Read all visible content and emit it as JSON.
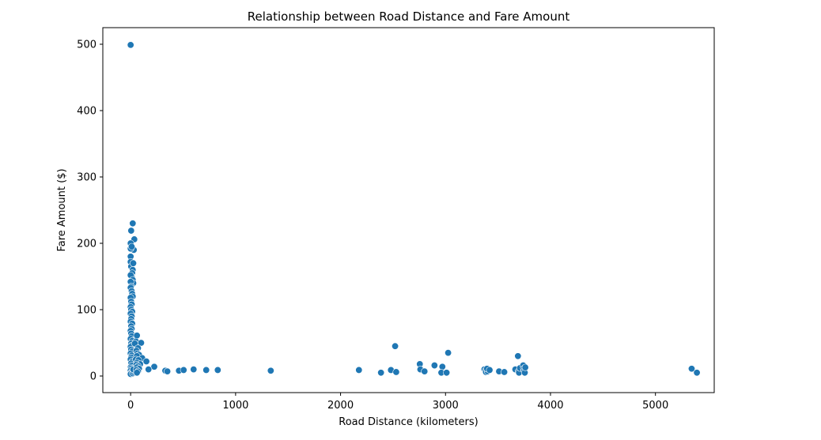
{
  "chart_data": {
    "type": "scatter",
    "title": "Relationship between Road Distance and Fare Amount",
    "xlabel": "Road Distance (kilometers)",
    "ylabel": "Fare Amount ($)",
    "xlim": [
      -265,
      5560
    ],
    "ylim": [
      -25,
      525
    ],
    "xticks": [
      0,
      1000,
      2000,
      3000,
      4000,
      5000
    ],
    "yticks": [
      0,
      100,
      200,
      300,
      400,
      500
    ],
    "grid": false,
    "marker_color": "#1f77b4",
    "marker_edge_color": "#ffffff",
    "points": [
      {
        "x": 0,
        "y": 499
      },
      {
        "x": 5,
        "y": 219
      },
      {
        "x": 20,
        "y": 230
      },
      {
        "x": 35,
        "y": 206
      },
      {
        "x": 30,
        "y": 190
      },
      {
        "x": 0,
        "y": 200
      },
      {
        "x": 0,
        "y": 192
      },
      {
        "x": 10,
        "y": 195
      },
      {
        "x": 0,
        "y": 180
      },
      {
        "x": 0,
        "y": 172
      },
      {
        "x": 5,
        "y": 165
      },
      {
        "x": 25,
        "y": 170
      },
      {
        "x": 20,
        "y": 160
      },
      {
        "x": 15,
        "y": 155
      },
      {
        "x": 10,
        "y": 150
      },
      {
        "x": 0,
        "y": 152
      },
      {
        "x": 20,
        "y": 145
      },
      {
        "x": 25,
        "y": 140
      },
      {
        "x": 0,
        "y": 142
      },
      {
        "x": 5,
        "y": 135
      },
      {
        "x": 0,
        "y": 133
      },
      {
        "x": 10,
        "y": 128
      },
      {
        "x": 15,
        "y": 124
      },
      {
        "x": 20,
        "y": 120
      },
      {
        "x": 0,
        "y": 118
      },
      {
        "x": 5,
        "y": 112
      },
      {
        "x": 10,
        "y": 108
      },
      {
        "x": 0,
        "y": 104
      },
      {
        "x": 5,
        "y": 100
      },
      {
        "x": 15,
        "y": 97
      },
      {
        "x": 0,
        "y": 94
      },
      {
        "x": 10,
        "y": 90
      },
      {
        "x": 5,
        "y": 86
      },
      {
        "x": 0,
        "y": 82
      },
      {
        "x": 15,
        "y": 79
      },
      {
        "x": 5,
        "y": 75
      },
      {
        "x": 10,
        "y": 71
      },
      {
        "x": 0,
        "y": 68
      },
      {
        "x": 5,
        "y": 64
      },
      {
        "x": 10,
        "y": 60
      },
      {
        "x": 0,
        "y": 56
      },
      {
        "x": 15,
        "y": 53
      },
      {
        "x": 5,
        "y": 49
      },
      {
        "x": 10,
        "y": 46
      },
      {
        "x": 0,
        "y": 44
      },
      {
        "x": 5,
        "y": 40
      },
      {
        "x": 15,
        "y": 37
      },
      {
        "x": 0,
        "y": 34
      },
      {
        "x": 10,
        "y": 31
      },
      {
        "x": 5,
        "y": 28
      },
      {
        "x": 0,
        "y": 25
      },
      {
        "x": 15,
        "y": 22
      },
      {
        "x": 5,
        "y": 19
      },
      {
        "x": 10,
        "y": 16
      },
      {
        "x": 0,
        "y": 13
      },
      {
        "x": 5,
        "y": 11
      },
      {
        "x": 15,
        "y": 9
      },
      {
        "x": 0,
        "y": 8
      },
      {
        "x": 10,
        "y": 6
      },
      {
        "x": 5,
        "y": 5
      },
      {
        "x": 0,
        "y": 3
      },
      {
        "x": 20,
        "y": 4
      },
      {
        "x": 30,
        "y": 6
      },
      {
        "x": 40,
        "y": 8
      },
      {
        "x": 25,
        "y": 10
      },
      {
        "x": 60,
        "y": 61
      },
      {
        "x": 50,
        "y": 52
      },
      {
        "x": 100,
        "y": 50
      },
      {
        "x": 40,
        "y": 49
      },
      {
        "x": 70,
        "y": 42
      },
      {
        "x": 55,
        "y": 38
      },
      {
        "x": 65,
        "y": 34
      },
      {
        "x": 80,
        "y": 32
      },
      {
        "x": 60,
        "y": 30
      },
      {
        "x": 110,
        "y": 27
      },
      {
        "x": 50,
        "y": 25
      },
      {
        "x": 75,
        "y": 24
      },
      {
        "x": 150,
        "y": 22
      },
      {
        "x": 60,
        "y": 20
      },
      {
        "x": 90,
        "y": 18
      },
      {
        "x": 55,
        "y": 17
      },
      {
        "x": 70,
        "y": 15
      },
      {
        "x": 60,
        "y": 13
      },
      {
        "x": 80,
        "y": 11
      },
      {
        "x": 55,
        "y": 9
      },
      {
        "x": 70,
        "y": 7
      },
      {
        "x": 60,
        "y": 5
      },
      {
        "x": 225,
        "y": 14
      },
      {
        "x": 170,
        "y": 10
      },
      {
        "x": 330,
        "y": 8
      },
      {
        "x": 350,
        "y": 7
      },
      {
        "x": 460,
        "y": 8
      },
      {
        "x": 505,
        "y": 9
      },
      {
        "x": 600,
        "y": 10
      },
      {
        "x": 720,
        "y": 9
      },
      {
        "x": 830,
        "y": 9
      },
      {
        "x": 1335,
        "y": 8
      },
      {
        "x": 2175,
        "y": 9
      },
      {
        "x": 2385,
        "y": 5
      },
      {
        "x": 2480,
        "y": 9
      },
      {
        "x": 2530,
        "y": 6
      },
      {
        "x": 2520,
        "y": 45
      },
      {
        "x": 2755,
        "y": 18
      },
      {
        "x": 2760,
        "y": 10
      },
      {
        "x": 2800,
        "y": 7
      },
      {
        "x": 2895,
        "y": 16
      },
      {
        "x": 2970,
        "y": 14
      },
      {
        "x": 2960,
        "y": 5
      },
      {
        "x": 3010,
        "y": 5
      },
      {
        "x": 3025,
        "y": 35
      },
      {
        "x": 3370,
        "y": 10
      },
      {
        "x": 3380,
        "y": 8
      },
      {
        "x": 3385,
        "y": 6
      },
      {
        "x": 3400,
        "y": 7
      },
      {
        "x": 3395,
        "y": 11
      },
      {
        "x": 3420,
        "y": 9
      },
      {
        "x": 3510,
        "y": 7
      },
      {
        "x": 3560,
        "y": 6
      },
      {
        "x": 3665,
        "y": 10
      },
      {
        "x": 3690,
        "y": 30
      },
      {
        "x": 3695,
        "y": 7
      },
      {
        "x": 3700,
        "y": 5
      },
      {
        "x": 3710,
        "y": 12
      },
      {
        "x": 3740,
        "y": 16
      },
      {
        "x": 3745,
        "y": 11
      },
      {
        "x": 3750,
        "y": 8
      },
      {
        "x": 3755,
        "y": 5
      },
      {
        "x": 3760,
        "y": 13
      },
      {
        "x": 5345,
        "y": 11
      },
      {
        "x": 5395,
        "y": 5
      }
    ]
  }
}
